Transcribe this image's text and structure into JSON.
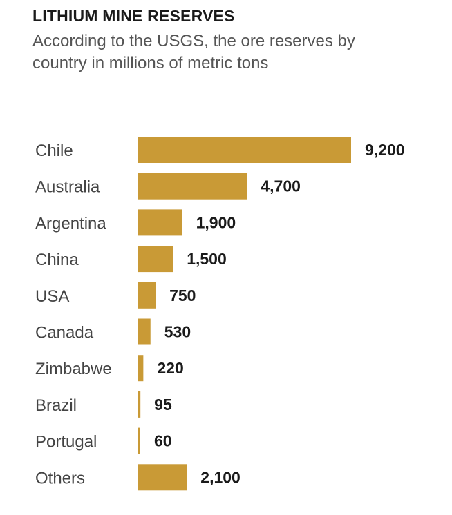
{
  "header": {
    "title": "LITHIUM MINE RESERVES",
    "subtitle": "According to the USGS, the ore reserves by country in millions of metric tons"
  },
  "chart_data": {
    "type": "bar",
    "orientation": "horizontal",
    "title": "LITHIUM MINE RESERVES",
    "subtitle": "According to the USGS, the ore reserves by country in millions of metric tons",
    "categories": [
      "Chile",
      "Australia",
      "Argentina",
      "China",
      "USA",
      "Canada",
      "Zimbabwe",
      "Brazil",
      "Portugal",
      "Others"
    ],
    "values": [
      9200,
      4700,
      1900,
      1500,
      750,
      530,
      220,
      95,
      60,
      2100
    ],
    "value_labels": [
      "9,200",
      "4,700",
      "1,900",
      "1,500",
      "750",
      "530",
      "220",
      "95",
      "60",
      "2,100"
    ],
    "xlabel": "",
    "ylabel": "",
    "xlim": [
      0,
      9200
    ],
    "grid": false,
    "legend": "none",
    "colors": {
      "bar": "#C99A36"
    }
  }
}
